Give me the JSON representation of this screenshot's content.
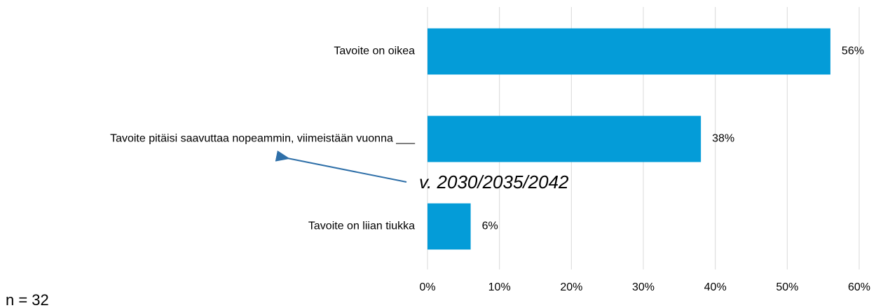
{
  "chart_data": {
    "type": "bar",
    "categories": [
      "Tavoite on oikea",
      "Tavoite pitäisi saavuttaa nopeammin, viimeistään vuonna ___",
      "Tavoite on liian tiukka"
    ],
    "values": [
      56,
      38,
      6
    ],
    "value_labels": [
      "56%",
      "38%",
      "6%"
    ],
    "color": "#049cd8",
    "xlim": [
      0,
      60
    ],
    "xticks": [
      {
        "value": 0,
        "label": "0%"
      },
      {
        "value": 10,
        "label": "10%"
      },
      {
        "value": 20,
        "label": "20%"
      },
      {
        "value": 30,
        "label": "30%"
      },
      {
        "value": 40,
        "label": "40%"
      },
      {
        "value": 50,
        "label": "50%"
      },
      {
        "value": 60,
        "label": "60%"
      }
    ],
    "grid": true,
    "annotation": "v. 2030/2035/2042",
    "note": "n = 32"
  }
}
